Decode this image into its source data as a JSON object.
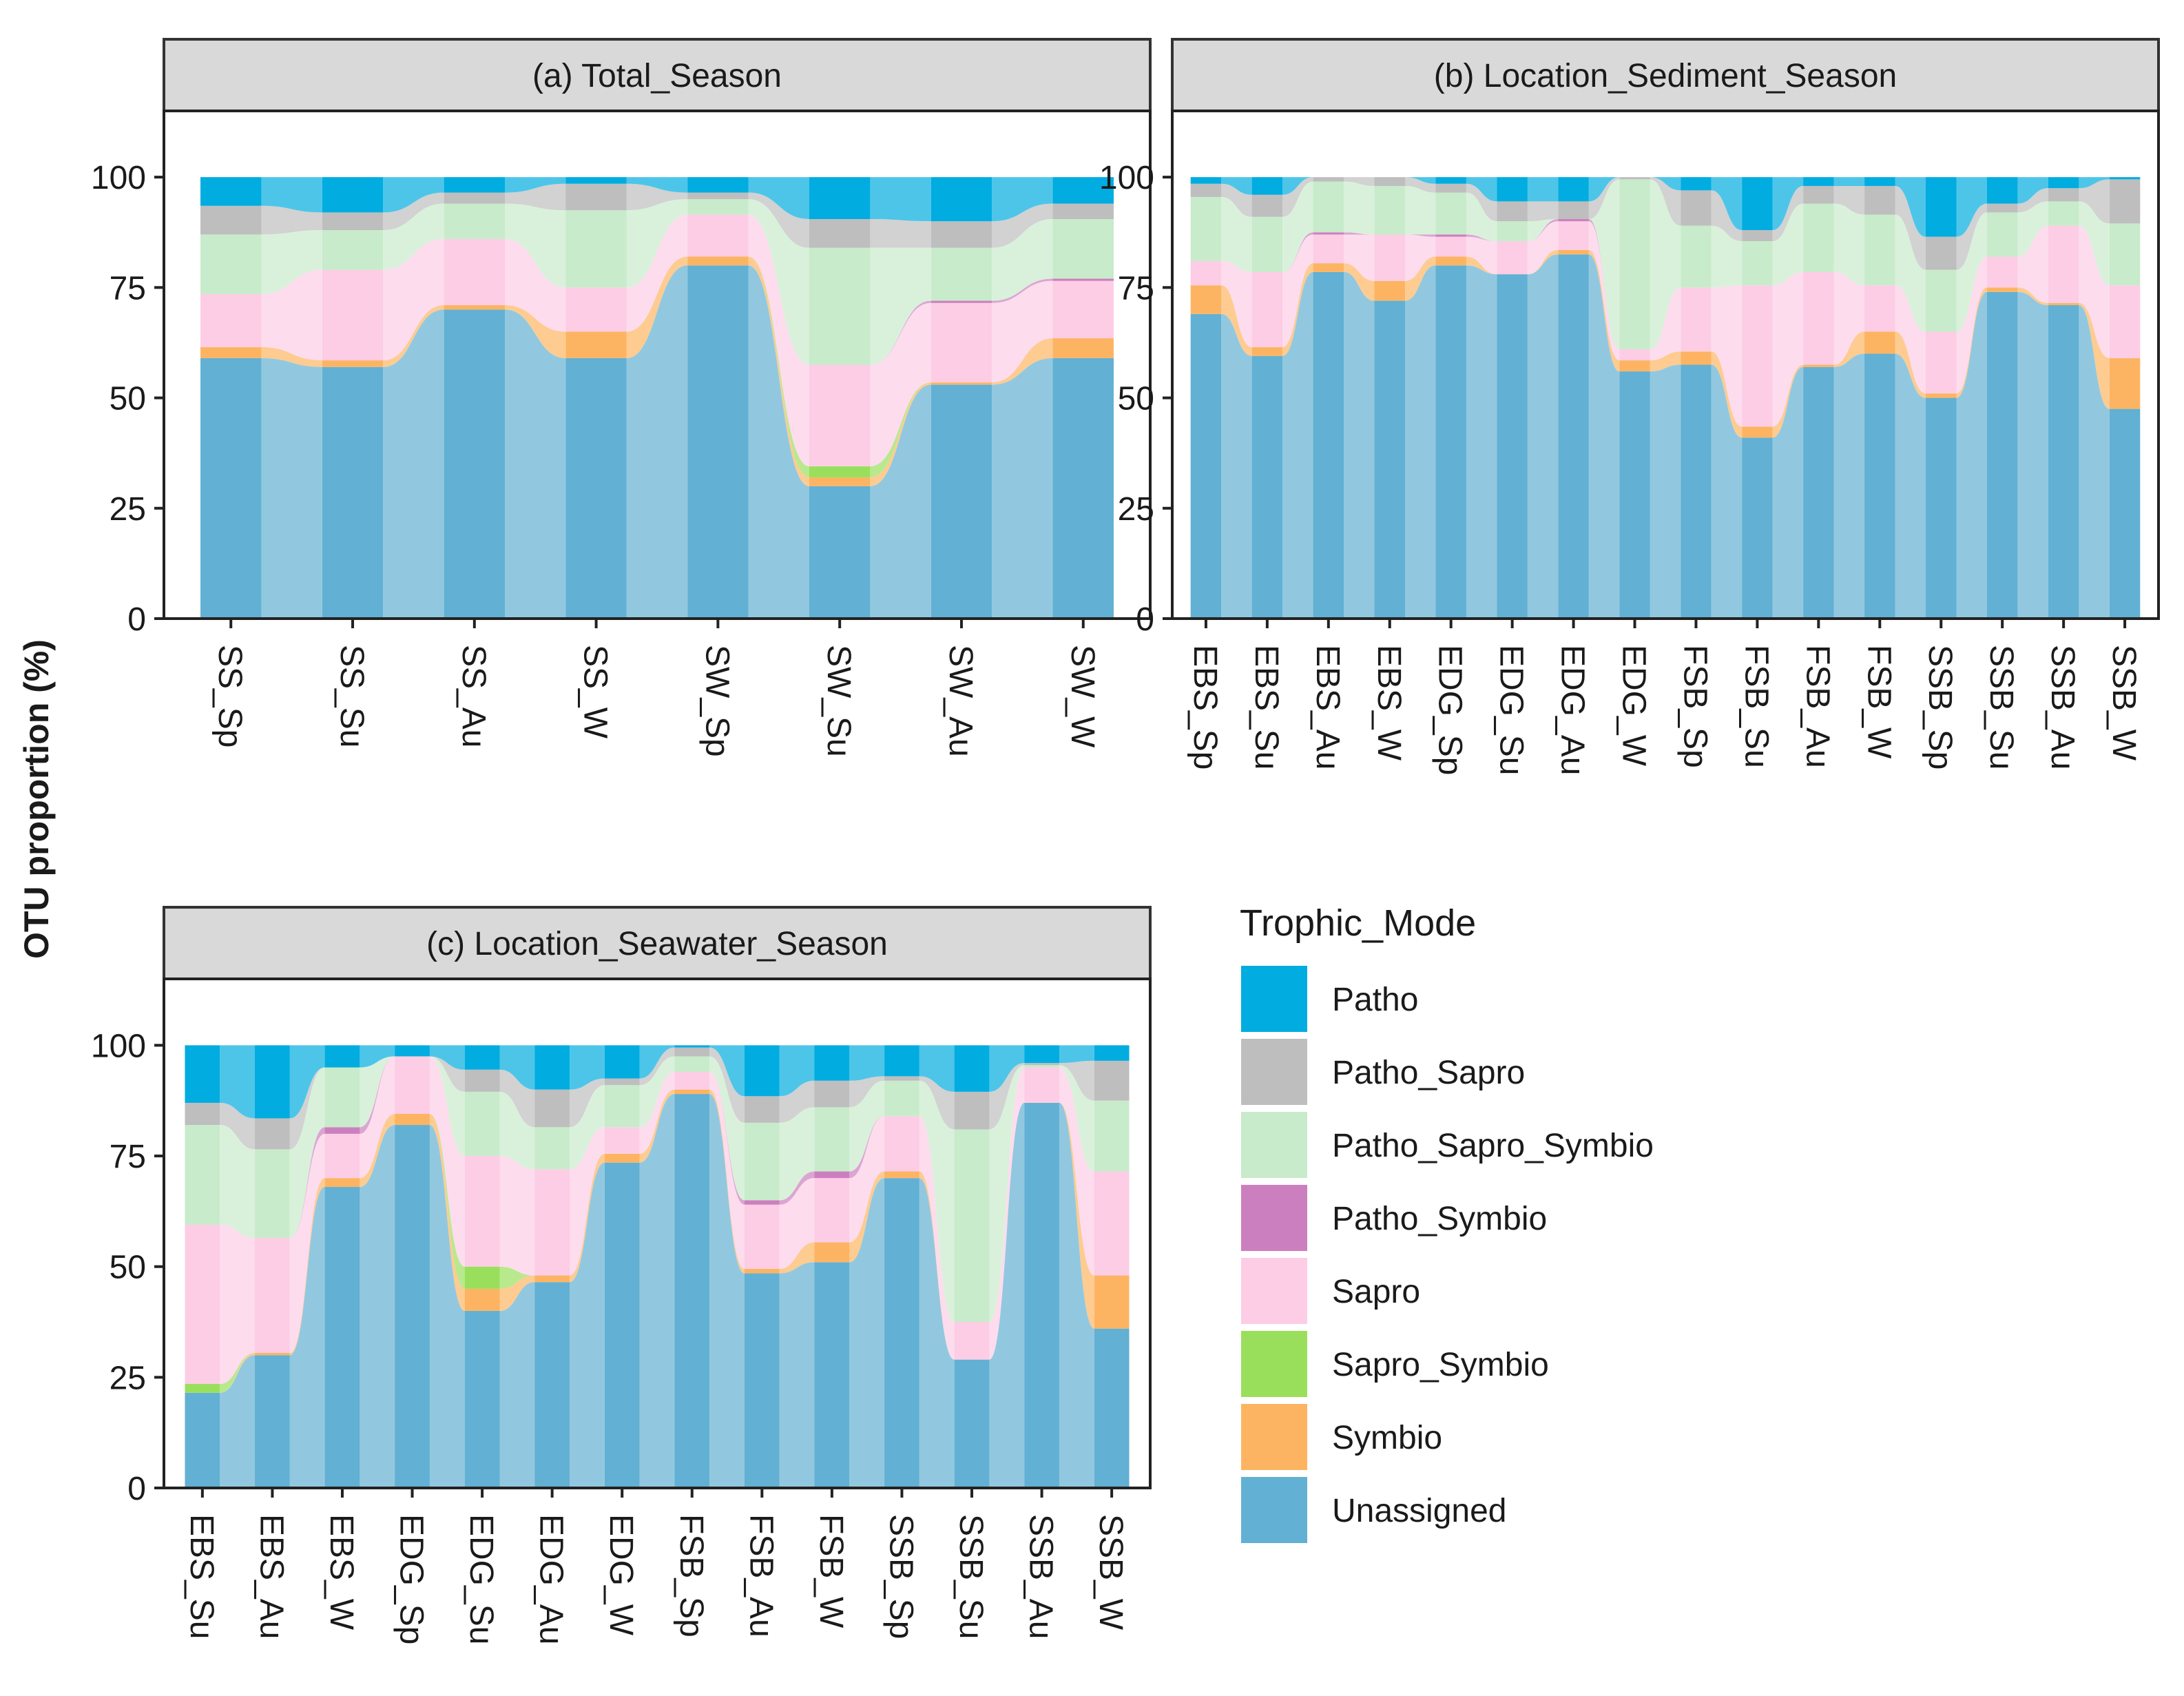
{
  "figure": {
    "ylabel": "OTU proportion (%)",
    "yticks": [
      "0",
      "25",
      "50",
      "75",
      "100"
    ]
  },
  "legend": {
    "title": "Trophic_Mode",
    "items": [
      {
        "label": "Patho",
        "color": "#00ACE0"
      },
      {
        "label": "Patho_Sapro",
        "color": "#BEBEBE"
      },
      {
        "label": "Patho_Sapro_Symbio",
        "color": "#C8EBCB"
      },
      {
        "label": "Patho_Symbio",
        "color": "#CC7FBE"
      },
      {
        "label": "Sapro",
        "color": "#FCCDE5"
      },
      {
        "label": "Sapro_Symbio",
        "color": "#9ADF5C"
      },
      {
        "label": "Symbio",
        "color": "#FDB462"
      },
      {
        "label": "Unassigned",
        "color": "#62B0D3"
      }
    ]
  },
  "chart_data": [
    {
      "type": "bar",
      "stacked": true,
      "title": "(a)  Total_Season",
      "ylabel": "OTU proportion (%)",
      "ylim": [
        0,
        115
      ],
      "series_order": [
        "Unassigned",
        "Symbio",
        "Sapro_Symbio",
        "Sapro",
        "Patho_Symbio",
        "Patho_Sapro_Symbio",
        "Patho_Sapro",
        "Patho"
      ],
      "categories": [
        "SS_Sp",
        "SS_Su",
        "SS_Au",
        "SS_W",
        "SW_Sp",
        "SW_Su",
        "SW_Au",
        "SW_W"
      ],
      "series": [
        {
          "name": "Unassigned",
          "values": [
            59,
            57,
            70,
            59,
            80,
            30,
            53,
            59
          ]
        },
        {
          "name": "Symbio",
          "values": [
            2.5,
            1.5,
            1,
            6,
            2,
            2,
            0.5,
            4.5
          ]
        },
        {
          "name": "Sapro_Symbio",
          "values": [
            0,
            0,
            0,
            0,
            0,
            2.5,
            0,
            0
          ]
        },
        {
          "name": "Sapro",
          "values": [
            12,
            20.5,
            15,
            10,
            9.5,
            23,
            18,
            13
          ]
        },
        {
          "name": "Patho_Symbio",
          "values": [
            0,
            0,
            0,
            0,
            0,
            0,
            0.5,
            0.5
          ]
        },
        {
          "name": "Patho_Sapro_Symbio",
          "values": [
            13.5,
            9,
            8,
            17.5,
            3.5,
            26.5,
            12,
            13.5
          ]
        },
        {
          "name": "Patho_Sapro",
          "values": [
            6.5,
            4,
            2.5,
            6,
            1.5,
            6.5,
            6,
            3.5
          ]
        },
        {
          "name": "Patho",
          "values": [
            6.5,
            8,
            3.5,
            1.5,
            3.5,
            9.5,
            10,
            6
          ]
        }
      ]
    },
    {
      "type": "bar",
      "stacked": true,
      "title": "(b)  Location_Sediment_Season",
      "ylim": [
        0,
        115
      ],
      "series_order": [
        "Unassigned",
        "Symbio",
        "Sapro_Symbio",
        "Sapro",
        "Patho_Symbio",
        "Patho_Sapro_Symbio",
        "Patho_Sapro",
        "Patho"
      ],
      "categories": [
        "EBS_Sp",
        "EBS_Su",
        "EBS_Au",
        "EBS_W",
        "EDG_Sp",
        "EDG_Su",
        "EDG_Au",
        "EDG_W",
        "FSB_Sp",
        "FSB_Su",
        "FSB_Au",
        "FSB_W",
        "SSB_Sp",
        "SSB_Su",
        "SSB_Au",
        "SSB_W"
      ],
      "series": [
        {
          "name": "Unassigned",
          "values": [
            69,
            59.5,
            78.5,
            72,
            80,
            78,
            82.5,
            56,
            57.5,
            41,
            57,
            60,
            50,
            74,
            71,
            47.5
          ]
        },
        {
          "name": "Symbio",
          "values": [
            6.5,
            2,
            2,
            4.5,
            2,
            0,
            1,
            2.5,
            3,
            2.5,
            0.5,
            5,
            1,
            1,
            0.5,
            11.5
          ]
        },
        {
          "name": "Sapro_Symbio",
          "values": [
            0,
            0,
            0,
            0,
            0,
            0,
            0,
            0,
            0,
            0,
            0,
            0,
            0,
            0,
            0,
            0
          ]
        },
        {
          "name": "Sapro",
          "values": [
            5.5,
            17,
            6.5,
            10.5,
            4.5,
            7.5,
            6.5,
            2.5,
            14.5,
            32,
            21,
            10.5,
            14,
            7,
            17.5,
            16.5
          ]
        },
        {
          "name": "Patho_Symbio",
          "values": [
            0,
            0,
            0.5,
            0,
            0.5,
            0,
            0.5,
            0,
            0,
            0,
            0,
            0,
            0,
            0,
            0,
            0
          ]
        },
        {
          "name": "Patho_Sapro_Symbio",
          "values": [
            14.5,
            12.5,
            11.5,
            11,
            9.5,
            4.5,
            0,
            38.5,
            14,
            10,
            15.5,
            16,
            14,
            10,
            5.5,
            14
          ]
        },
        {
          "name": "Patho_Sapro",
          "values": [
            3,
            5,
            1,
            2,
            2,
            4.5,
            4,
            0.5,
            8,
            2.5,
            4,
            6.5,
            7.5,
            2,
            3,
            10
          ]
        },
        {
          "name": "Patho",
          "values": [
            1.5,
            4,
            0,
            0,
            1.5,
            5.5,
            5.5,
            0,
            3,
            12,
            2,
            2,
            13.5,
            6,
            2.5,
            0.5
          ]
        }
      ]
    },
    {
      "type": "bar",
      "stacked": true,
      "title": "(c)  Location_Seawater_Season",
      "ylim": [
        0,
        115
      ],
      "series_order": [
        "Unassigned",
        "Symbio",
        "Sapro_Symbio",
        "Sapro",
        "Patho_Symbio",
        "Patho_Sapro_Symbio",
        "Patho_Sapro",
        "Patho"
      ],
      "categories": [
        "EBS_Su",
        "EBS_Au",
        "EBS_W",
        "EDG_Sp",
        "EDG_Su",
        "EDG_Au",
        "EDG_W",
        "FSB_Sp",
        "FSB_Au",
        "FSB_W",
        "SSB_Sp",
        "SSB_Su",
        "SSB_Au",
        "SSB_W"
      ],
      "series": [
        {
          "name": "Unassigned",
          "values": [
            21.5,
            30,
            68,
            82,
            40,
            46.5,
            73.5,
            89,
            48.5,
            51,
            70,
            29,
            87,
            36
          ]
        },
        {
          "name": "Symbio",
          "values": [
            0,
            0.5,
            2,
            2.5,
            5,
            1.5,
            2,
            1,
            1,
            4.5,
            1.5,
            0,
            0,
            12
          ]
        },
        {
          "name": "Sapro_Symbio",
          "values": [
            2,
            0,
            0,
            0,
            5,
            0,
            0,
            0,
            0,
            0,
            0,
            0,
            0,
            0
          ]
        },
        {
          "name": "Sapro",
          "values": [
            36,
            26,
            10,
            13,
            25,
            24,
            6,
            4,
            14.5,
            14.5,
            12.5,
            8.5,
            8,
            23.5
          ]
        },
        {
          "name": "Patho_Symbio",
          "values": [
            0,
            0,
            1.5,
            0,
            0,
            0,
            0,
            0,
            1,
            1.5,
            0,
            0,
            0,
            0
          ]
        },
        {
          "name": "Patho_Sapro_Symbio",
          "values": [
            22.5,
            20,
            13.5,
            0,
            14.5,
            9.5,
            9.5,
            3.5,
            17.5,
            14.5,
            8,
            43.5,
            0.5,
            16
          ]
        },
        {
          "name": "Patho_Sapro",
          "values": [
            5,
            7,
            0,
            0,
            5,
            8.5,
            1.5,
            2,
            6,
            6,
            1,
            8.5,
            0.5,
            9
          ]
        },
        {
          "name": "Patho",
          "values": [
            13,
            16.5,
            5,
            2.5,
            5.5,
            10,
            7.5,
            0.5,
            11.5,
            8,
            7,
            10.5,
            4,
            3.5
          ]
        }
      ]
    }
  ]
}
